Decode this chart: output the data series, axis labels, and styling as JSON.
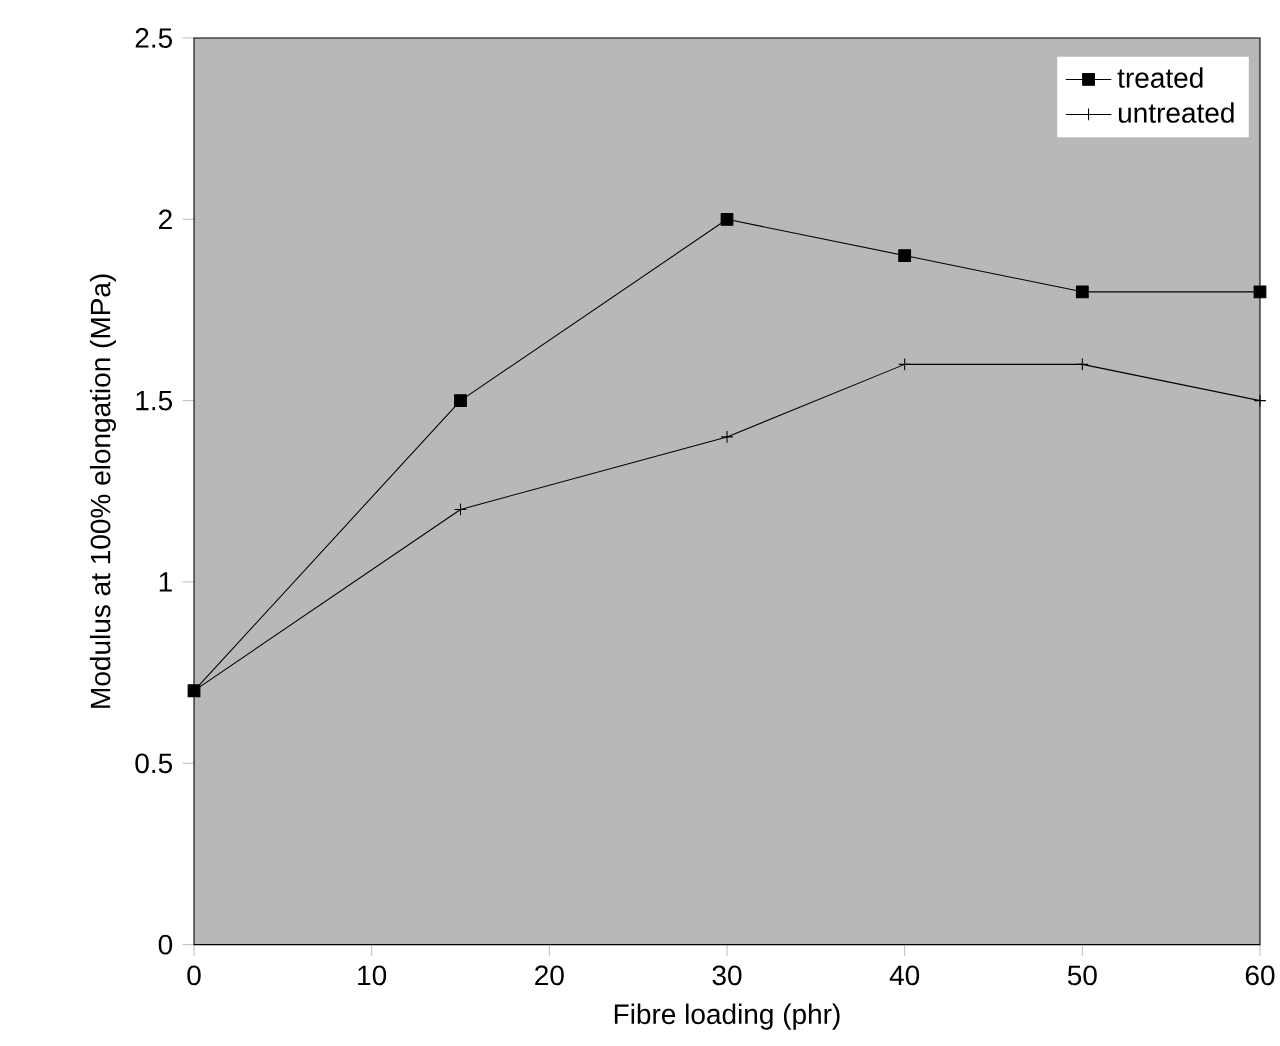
{
  "chart_data": {
    "type": "line",
    "xlabel": "Fibre loading (phr)",
    "ylabel": "Modulus at 100% elongation (MPa)",
    "x": [
      0,
      15,
      30,
      40,
      50,
      60
    ],
    "series": [
      {
        "name": "treated",
        "color": "#000000",
        "marker": "square",
        "values": [
          0.7,
          1.5,
          2.0,
          1.9,
          1.8,
          1.8
        ]
      },
      {
        "name": "untreated",
        "color": "#000000",
        "marker": "cross",
        "values": [
          0.7,
          1.2,
          1.4,
          1.6,
          1.6,
          1.5
        ]
      }
    ],
    "xlim": [
      0,
      60
    ],
    "xticks": [
      0,
      10,
      20,
      30,
      40,
      50,
      60
    ],
    "ylim": [
      0,
      2.5
    ],
    "yticks": [
      0,
      {
        "value": 0.5,
        "label": "0.5"
      },
      1,
      {
        "value": 1.5,
        "label": "1.5"
      },
      2,
      {
        "value": 2.5,
        "label": "2.5"
      }
    ],
    "legend": "top right",
    "line_style": "solid",
    "grid": false
  }
}
